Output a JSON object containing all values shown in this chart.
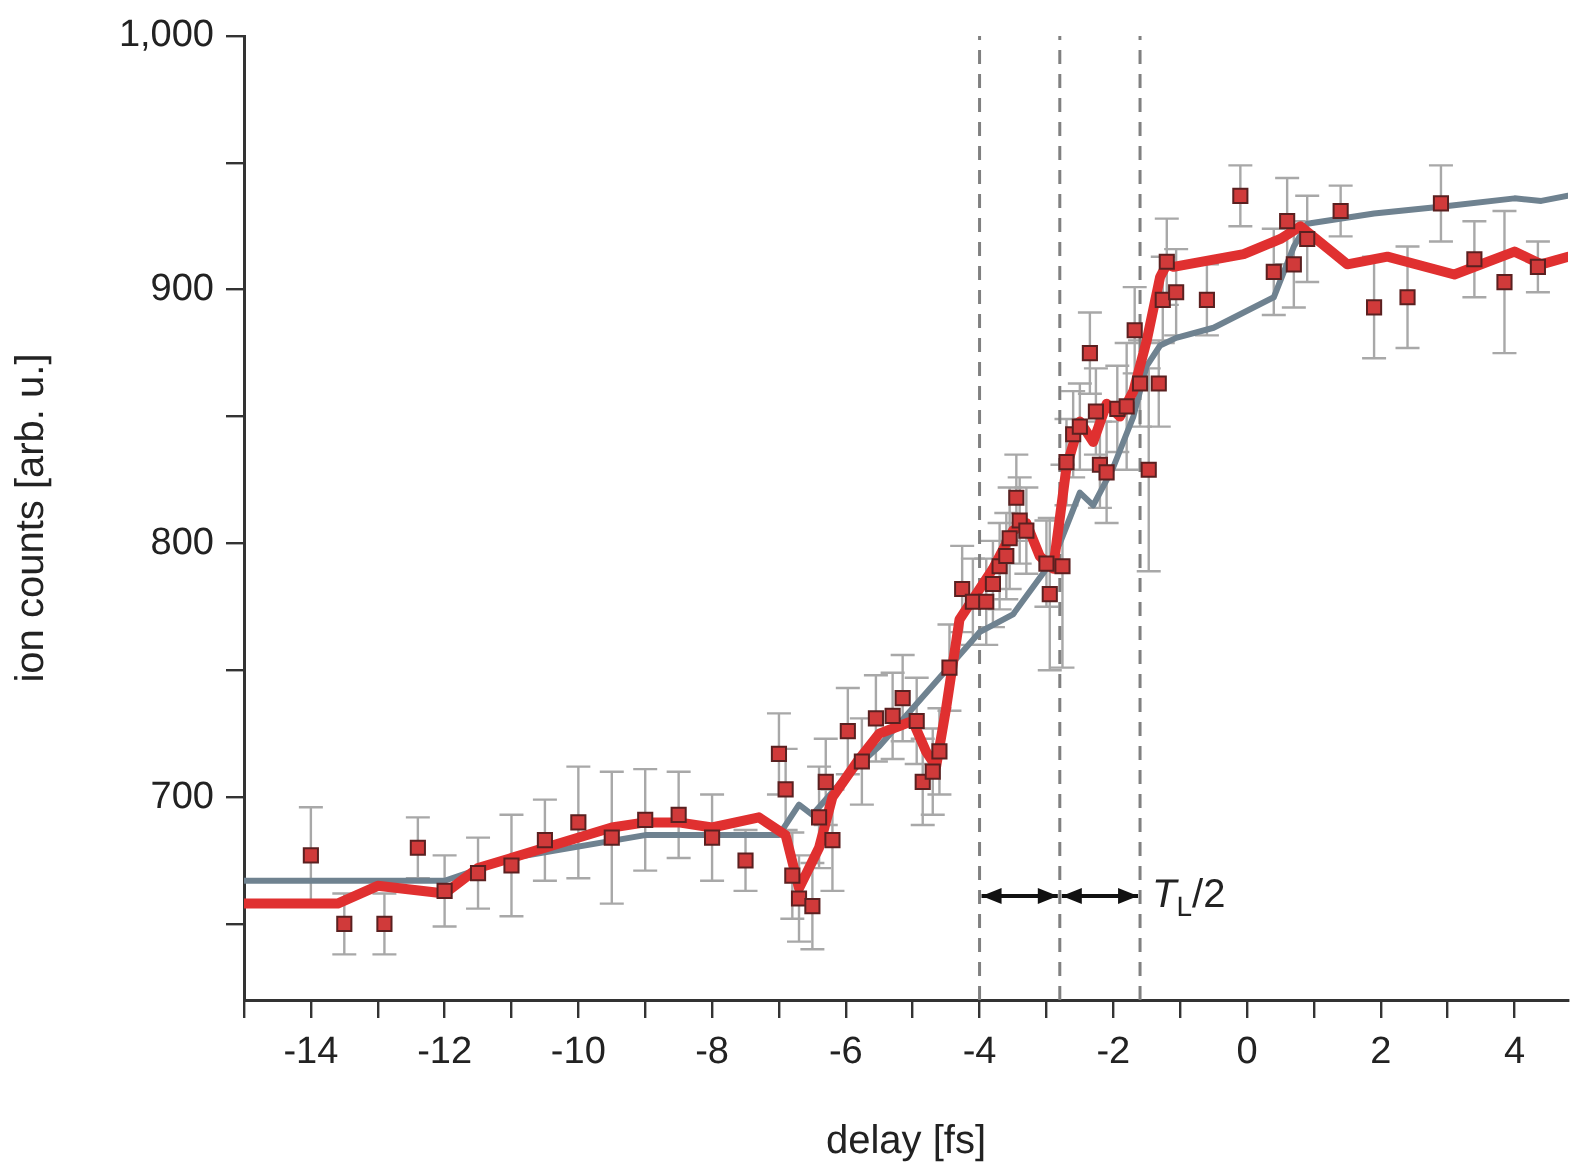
{
  "chart_data": {
    "type": "line",
    "xlabel": "delay [fs]",
    "ylabel": "ion counts [arb. u.]",
    "xlim": [
      -15,
      4.8
    ],
    "ylim": [
      620,
      1000
    ],
    "xticks": [
      {
        "value": -15,
        "label": null
      },
      -14,
      {
        "value": -13,
        "label": null
      },
      -12,
      {
        "value": -11,
        "label": null
      },
      -10,
      {
        "value": -9,
        "label": null
      },
      -8,
      {
        "value": -7,
        "label": null
      },
      -6,
      {
        "value": -5,
        "label": null
      },
      -4,
      {
        "value": -3,
        "label": null
      },
      -2,
      {
        "value": -1,
        "label": null
      },
      0,
      {
        "value": 1,
        "label": null
      },
      2,
      {
        "value": 3,
        "label": null
      },
      4
    ],
    "yticks": [
      {
        "value": 650,
        "label": null
      },
      700,
      {
        "value": 750,
        "label": null
      },
      800,
      {
        "value": 850,
        "label": null
      },
      900,
      {
        "value": 950,
        "label": null
      },
      {
        "value": 1000,
        "label": "1,000"
      }
    ],
    "grid": false,
    "legend": false,
    "series": [
      {
        "type": "line",
        "color": "#6f8290",
        "marker": "none",
        "x": [
          -15,
          -12,
          -11,
          -9,
          -7.5,
          -7,
          -6.7,
          -6.5,
          -6,
          -5.5,
          -5,
          -4.5,
          -4,
          -3.5,
          -3,
          -2.8,
          -2.5,
          -2.3,
          -2,
          -1.7,
          -1.5,
          -1.3,
          -1.06,
          -0.5,
          0.4,
          0.7,
          0.9,
          1.9,
          3,
          4,
          4.4,
          4.8
        ],
        "values": [
          667,
          667,
          676,
          685,
          685,
          685,
          697,
          693,
          708,
          720,
          735,
          750,
          765,
          772,
          790,
          800,
          820,
          815,
          830,
          850,
          870,
          878,
          881,
          885,
          897,
          917,
          926,
          930,
          933,
          936,
          935,
          937
        ]
      },
      {
        "type": "line",
        "color": "#e03030",
        "marker": "none",
        "x": [
          -15,
          -13.6,
          -13,
          -12,
          -11.5,
          -10.5,
          -9.5,
          -9,
          -8.5,
          -8,
          -7.3,
          -6.9,
          -6.7,
          -6.4,
          -6.2,
          -5.8,
          -5.5,
          -5.2,
          -5,
          -4.8,
          -4.65,
          -4.5,
          -4.3,
          -4.1,
          -3.8,
          -3.5,
          -3.3,
          -3.1,
          -2.9,
          -2.7,
          -2.5,
          -2.3,
          -2.1,
          -1.9,
          -1.7,
          -1.5,
          -1.3,
          -1.2,
          -1.1,
          -0.05,
          0.5,
          0.8,
          1.5,
          2.1,
          3.1,
          4,
          4.4,
          4.8
        ],
        "values": [
          658,
          658,
          665,
          662,
          672,
          680,
          688,
          690,
          690,
          688,
          692,
          685,
          664,
          680,
          700,
          715,
          725,
          728,
          730,
          718,
          712,
          735,
          770,
          778,
          790,
          805,
          808,
          795,
          790,
          830,
          848,
          840,
          855,
          850,
          860,
          880,
          905,
          910,
          909,
          914,
          920,
          925,
          910,
          913,
          906,
          915,
          910,
          913
        ]
      },
      {
        "type": "scatter",
        "color": "#d03a3a",
        "marker": "square",
        "x": [
          -14,
          -13.5,
          -12.9,
          -12.4,
          -12,
          -11.5,
          -11,
          -10.5,
          -10,
          -9.5,
          -9,
          -8.5,
          -8,
          -7.5,
          -7,
          -6.9,
          -6.8,
          -6.7,
          -6.5,
          -6.4,
          -6.3,
          -6.2,
          -5.97,
          -5.76,
          -5.55,
          -5.3,
          -5.15,
          -4.94,
          -4.85,
          -4.7,
          -4.6,
          -4.45,
          -4.26,
          -4.1,
          -3.9,
          -3.8,
          -3.7,
          -3.6,
          -3.55,
          -3.45,
          -3.4,
          -3.3,
          -3,
          -2.95,
          -2.76,
          -2.7,
          -2.6,
          -2.5,
          -2.35,
          -2.26,
          -2.2,
          -2.1,
          -1.94,
          -1.8,
          -1.68,
          -1.6,
          -1.47,
          -1.32,
          -1.26,
          -1.2,
          -1.06,
          -0.6,
          -0.1,
          0.4,
          0.6,
          0.7,
          0.9,
          1.4,
          1.9,
          2.4,
          2.9,
          3.4,
          3.85,
          4.35
        ],
        "values": [
          677,
          650,
          650,
          680,
          663,
          670,
          673,
          683,
          690,
          684,
          691,
          693,
          684,
          675,
          717,
          703,
          669,
          660,
          657,
          692,
          706,
          683,
          726,
          714,
          731,
          732,
          739,
          730,
          706,
          710,
          718,
          751,
          782,
          777,
          777,
          784,
          791,
          795,
          802,
          818,
          809,
          805,
          792,
          780,
          791,
          832,
          843,
          846,
          875,
          852,
          831,
          828,
          853,
          854,
          884,
          863,
          829,
          863,
          896,
          911,
          899,
          896,
          937,
          907,
          927,
          910,
          920,
          931,
          893,
          897,
          934,
          912,
          903,
          909
        ],
        "errors": [
          19,
          12,
          12,
          12,
          14,
          14,
          20,
          16,
          22,
          26,
          20,
          17,
          17,
          12,
          16,
          16,
          17,
          17,
          17,
          20,
          17,
          20,
          17,
          17,
          17,
          17,
          17,
          17,
          17,
          17,
          17,
          17,
          17,
          17,
          17,
          17,
          17,
          17,
          20,
          17,
          17,
          17,
          17,
          30,
          40,
          17,
          17,
          17,
          16,
          17,
          17,
          20,
          17,
          25,
          17,
          17,
          40,
          17,
          17,
          17,
          17,
          14,
          12,
          17,
          17,
          17,
          17,
          10,
          20,
          20,
          15,
          15,
          28,
          10
        ]
      }
    ],
    "ref_lines": [
      {
        "axis": "x",
        "value": -4,
        "line_style": "dashed",
        "color": "#808080"
      },
      {
        "axis": "x",
        "value": -2.8,
        "line_style": "dashed",
        "color": "#808080"
      },
      {
        "axis": "x",
        "value": -1.6,
        "line_style": "dashed",
        "color": "#808080"
      }
    ],
    "annotations": [
      {
        "text": "T$_{L}$/2",
        "x": -1.6,
        "y": 661
      }
    ]
  }
}
